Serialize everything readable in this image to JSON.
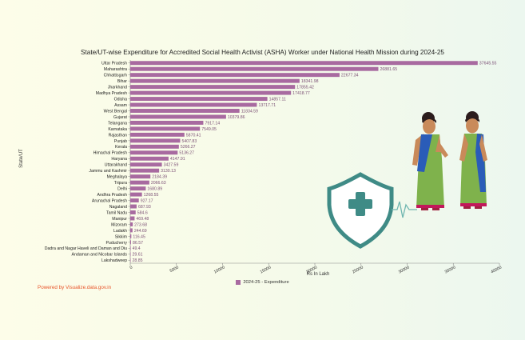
{
  "title": "State/UT-wise Expenditure for Accredited Social Health Activist (ASHA) Worker under National Health Mission during 2024-25",
  "footer": "Powered by Visualize.data.gov.in",
  "chart_data": {
    "type": "bar",
    "orientation": "horizontal",
    "title": "State/UT-wise Expenditure for Accredited Social Health Activist (ASHA) Worker under National Health Mission during 2024-25",
    "xlabel": "Rs In Lakh",
    "ylabel": "State/UT",
    "xlim": [
      0,
      40000
    ],
    "xticks": [
      0,
      5000,
      10000,
      15000,
      20000,
      25000,
      30000,
      35000,
      40000
    ],
    "grid": false,
    "legend_position": "bottom",
    "bar_color": "#a86aa0",
    "categories": [
      "Uttar Pradesh",
      "Maharashtra",
      "Chhattisgarh",
      "Bihar",
      "Jharkhand",
      "Madhya Pradesh",
      "Odisha",
      "Assam",
      "West Bengal",
      "Gujarat",
      "Telangana",
      "Karnataka",
      "Rajasthan",
      "Punjab",
      "Kerala",
      "Himachal Pradesh",
      "Haryana",
      "Uttarakhand",
      "Jammu and Kashmir",
      "Meghalaya",
      "Tripura",
      "Delhi",
      "Andhra Pradesh",
      "Arunachal Pradesh",
      "Nagaland",
      "Tamil Nadu",
      "Manipur",
      "Mizoram",
      "Ladakh",
      "Sikkim",
      "Puducherry",
      "Dadra and Nagar Haveli and Daman and Diu",
      "Andaman and Nicobar Islands",
      "Lakshadweep"
    ],
    "series": [
      {
        "name": "2024-25 - Expenditure",
        "values": [
          37645.55,
          26881.65,
          22677.34,
          18341.98,
          17855.42,
          17418.77,
          14857.11,
          13717.71,
          11834.59,
          10379.86,
          7917.14,
          7549.05,
          5870.41,
          5407.83,
          5266.27,
          5136.27,
          4147.91,
          3427.59,
          3130.13,
          2184.39,
          2066.63,
          1680.89,
          1268.55,
          927.17,
          687.93,
          584.6,
          469.48,
          273.68,
          244.69,
          116.45,
          86.57,
          49.4,
          29.61,
          28.85
        ],
        "labels": [
          "37645.55",
          "26881.65",
          "22677.34",
          "18341.98",
          "17855.42",
          "17418.77",
          "14857.11",
          "13717.71",
          "11834.59",
          "10379.86",
          "7917.14",
          "7549.05",
          "5870.41",
          "5407.83",
          "5266.27",
          "5136.27",
          "4147.91",
          "3427.59",
          "3130.13",
          "2184.39",
          "2066.63",
          "1680.89",
          "1268.55",
          "927.17",
          "687.93",
          "584.6",
          "469.48",
          "273.68",
          "244.69",
          "116.45",
          "86.57",
          "49.4",
          "29.61",
          "28.85"
        ]
      }
    ]
  }
}
